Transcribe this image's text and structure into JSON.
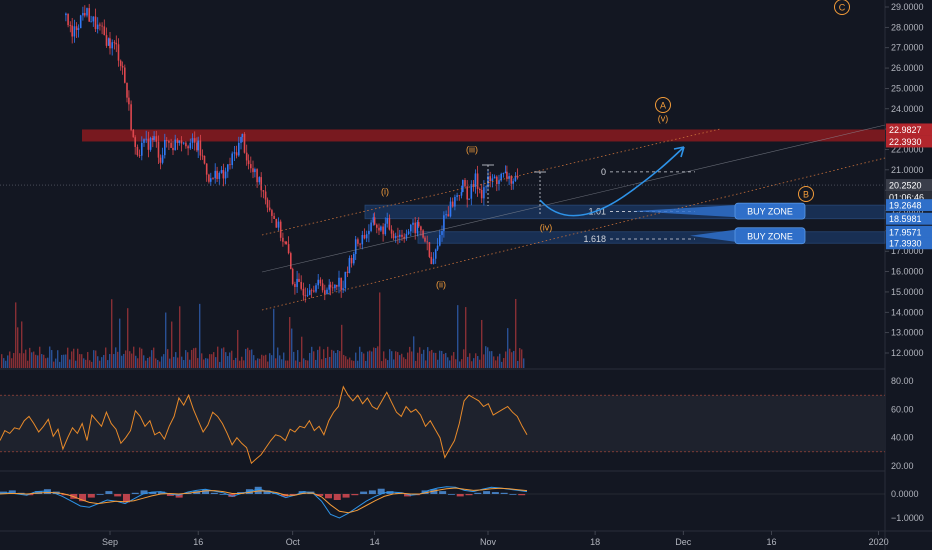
{
  "colors": {
    "background": "#131722",
    "bull": "#3179f5",
    "bear": "#e0484f",
    "resistance_zone": "#8b1a1f",
    "support_zone": "#1f4d8f",
    "wave_label": "#f39c3a",
    "projection": "#2e93e8",
    "rsi": "#e88a2a",
    "macd_line": "#2e93e8",
    "signal_line": "#f39c3a"
  },
  "chart_data": [
    {
      "type": "candlestick",
      "title": "",
      "y_axis_side": "right",
      "ylim": [
        11.5,
        29.4
      ],
      "y_ticks": [
        "29.0000",
        "28.0000",
        "27.0000",
        "26.0000",
        "25.0000",
        "24.0000",
        "23.0000",
        "22.0000",
        "21.0000",
        "20.0000",
        "19.0000",
        "18.0000",
        "17.0000",
        "16.0000",
        "15.0000",
        "14.0000",
        "13.0000",
        "12.0000"
      ],
      "x_ticks": [
        "Sep",
        "16",
        "Oct",
        "14",
        "Nov",
        "18",
        "Dec",
        "16",
        "2020"
      ],
      "close_path": [
        {
          "date": "Aug 26",
          "close": 28.6
        },
        {
          "date": "Aug 27",
          "close": 27.5
        },
        {
          "date": "Aug 28",
          "close": 28.3
        },
        {
          "date": "Aug 29",
          "close": 28.8
        },
        {
          "date": "Aug 30",
          "close": 28.4
        },
        {
          "date": "Sep 2",
          "close": 27.2
        },
        {
          "date": "Sep 3",
          "close": 27.0
        },
        {
          "date": "Sep 4",
          "close": 26.0
        },
        {
          "date": "Sep 5",
          "close": 24.0
        },
        {
          "date": "Sep 6",
          "close": 21.9
        },
        {
          "date": "Sep 9",
          "close": 22.5
        },
        {
          "date": "Sep 10",
          "close": 21.6
        },
        {
          "date": "Sep 11",
          "close": 22.4
        },
        {
          "date": "Sep 12",
          "close": 22.2
        },
        {
          "date": "Sep 13",
          "close": 22.6
        },
        {
          "date": "Sep 16",
          "close": 22.1
        },
        {
          "date": "Sep 17",
          "close": 21.3
        },
        {
          "date": "Sep 18",
          "close": 20.4
        },
        {
          "date": "Sep 19",
          "close": 20.9
        },
        {
          "date": "Sep 20",
          "close": 20.6
        },
        {
          "date": "Sep 23",
          "close": 22.6
        },
        {
          "date": "Sep 24",
          "close": 21.2
        },
        {
          "date": "Sep 25",
          "close": 20.7
        },
        {
          "date": "Sep 26",
          "close": 20.3
        },
        {
          "date": "Sep 27",
          "close": 19.4
        },
        {
          "date": "Sep 30",
          "close": 17.2
        },
        {
          "date": "Oct 1",
          "close": 15.6
        },
        {
          "date": "Oct 2",
          "close": 15.2
        },
        {
          "date": "Oct 3",
          "close": 15.1
        },
        {
          "date": "Oct 4",
          "close": 15.4
        },
        {
          "date": "Oct 7",
          "close": 15.1
        },
        {
          "date": "Oct 8",
          "close": 15.6
        },
        {
          "date": "Oct 9",
          "close": 15.3
        },
        {
          "date": "Oct 10",
          "close": 16.4
        },
        {
          "date": "Oct 11",
          "close": 17.3
        },
        {
          "date": "Oct 14",
          "close": 18.4
        },
        {
          "date": "Oct 15",
          "close": 18.0
        },
        {
          "date": "Oct 16",
          "close": 18.3
        },
        {
          "date": "Oct 17",
          "close": 17.9
        },
        {
          "date": "Oct 18",
          "close": 17.8
        },
        {
          "date": "Oct 21",
          "close": 18.2
        },
        {
          "date": "Oct 22",
          "close": 17.6
        },
        {
          "date": "Oct 23",
          "close": 16.3
        },
        {
          "date": "Oct 24",
          "close": 17.2
        },
        {
          "date": "Oct 25",
          "close": 18.7
        },
        {
          "date": "Oct 28",
          "close": 20.2
        },
        {
          "date": "Oct 29",
          "close": 19.7
        },
        {
          "date": "Oct 30",
          "close": 20.5
        },
        {
          "date": "Oct 31",
          "close": 19.9
        },
        {
          "date": "Nov 1",
          "close": 20.4
        },
        {
          "date": "Nov 4",
          "close": 20.7
        },
        {
          "date": "Nov 5",
          "close": 20.4
        },
        {
          "date": "Nov 6",
          "close": 20.3
        }
      ],
      "price_labels": [
        {
          "text": "22.9827",
          "value": 22.9827,
          "kind": "resistance"
        },
        {
          "text": "22.3930",
          "value": 22.393,
          "kind": "resistance"
        },
        {
          "text": "20.2520",
          "value": 20.252,
          "kind": "last"
        },
        {
          "text": "01:06:46",
          "value": 19.8,
          "kind": "timer"
        },
        {
          "text": "19.2648",
          "value": 19.2648,
          "kind": "support"
        },
        {
          "text": "18.5981",
          "value": 18.5981,
          "kind": "support"
        },
        {
          "text": "17.9571",
          "value": 17.9571,
          "kind": "support"
        },
        {
          "text": "17.3930",
          "value": 17.393,
          "kind": "support"
        }
      ],
      "zones": [
        {
          "kind": "resistance",
          "from": 22.393,
          "to": 22.9827
        },
        {
          "kind": "buy",
          "label": "BUY ZONE",
          "from": 18.5981,
          "to": 19.2648
        },
        {
          "kind": "buy",
          "label": "BUY ZONE",
          "from": 17.393,
          "to": 17.9571
        }
      ],
      "wave_labels": [
        "C",
        "A",
        "(v)",
        "B",
        "(iii)",
        "(i)",
        "(iv)",
        "(ii)"
      ],
      "fib_levels": [
        {
          "label": "0",
          "value": 20.9
        },
        {
          "label": "1.01",
          "value": 18.95
        },
        {
          "label": "1.618",
          "value": 17.6
        }
      ]
    },
    {
      "type": "line",
      "name": "RSI",
      "ylim": [
        13,
        88
      ],
      "y_ticks": [
        "80.00",
        "60.00",
        "40.00",
        "20.00"
      ],
      "band": [
        30,
        70
      ],
      "values": [
        38,
        45,
        43,
        47,
        46,
        52,
        55,
        50,
        44,
        48,
        53,
        41,
        46,
        32,
        40,
        47,
        43,
        50,
        38,
        56,
        52,
        48,
        58,
        50,
        46,
        36,
        40,
        45,
        59,
        55,
        48,
        52,
        42,
        44,
        39,
        48,
        55,
        68,
        63,
        70,
        60,
        52,
        44,
        49,
        58,
        55,
        50,
        43,
        35,
        40,
        36,
        33,
        22,
        25,
        28,
        33,
        38,
        42,
        41,
        38,
        46,
        44,
        48,
        47,
        52,
        45,
        48,
        42,
        52,
        58,
        62,
        76,
        70,
        66,
        70,
        64,
        68,
        62,
        60,
        66,
        72,
        65,
        58,
        55,
        62,
        58,
        60,
        56,
        48,
        52,
        46,
        40,
        26,
        32,
        38,
        50,
        66,
        70,
        68,
        66,
        62,
        64,
        56,
        58,
        60,
        62,
        58,
        55,
        48,
        42
      ]
    },
    {
      "type": "bar+line",
      "name": "MACD",
      "ylim": [
        -1.35,
        0.72
      ],
      "y_ticks": [
        "0.0000",
        "−1.0000"
      ],
      "histogram": [
        0.1,
        0.15,
        0.05,
        -0.05,
        0.12,
        0.2,
        0.1,
        -0.05,
        -0.2,
        -0.3,
        -0.15,
        0.0,
        0.12,
        -0.1,
        -0.35,
        0.05,
        0.15,
        0.08,
        0.1,
        -0.08,
        -0.15,
        0.05,
        0.12,
        0.18,
        0.05,
        0.0,
        -0.12,
        0.08,
        0.2,
        0.3,
        0.15,
        0.05,
        -0.1,
        -0.05,
        0.12,
        0.1,
        -0.08,
        -0.18,
        -0.25,
        -0.15,
        -0.05,
        0.1,
        0.15,
        0.22,
        0.12,
        0.05,
        -0.1,
        -0.05,
        0.15,
        0.2,
        0.12,
        0.0,
        -0.1,
        -0.05,
        0.05,
        0.12,
        0.08,
        0.05,
        0.0,
        -0.05
      ],
      "macd": [
        0.02,
        0.05,
        0.0,
        -0.05,
        0.1,
        0.12,
        0.05,
        -0.1,
        -0.3,
        -0.5,
        -0.55,
        -0.4,
        -0.25,
        -0.3,
        -0.4,
        -0.2,
        0.0,
        0.08,
        0.1,
        0.0,
        -0.05,
        0.08,
        0.15,
        0.2,
        0.12,
        0.05,
        -0.1,
        0.02,
        0.12,
        0.2,
        0.1,
        0.0,
        -0.15,
        -0.05,
        0.1,
        0.05,
        -0.3,
        -0.85,
        -1.0,
        -0.8,
        -0.55,
        -0.3,
        -0.1,
        0.05,
        0.08,
        0.05,
        -0.05,
        0.0,
        0.15,
        0.25,
        0.3,
        0.28,
        0.15,
        0.1,
        0.2,
        0.28,
        0.25,
        0.2,
        0.15,
        0.1
      ],
      "signal": [
        0.0,
        0.02,
        0.02,
        0.0,
        0.03,
        0.06,
        0.06,
        0.02,
        -0.08,
        -0.22,
        -0.35,
        -0.4,
        -0.35,
        -0.3,
        -0.32,
        -0.28,
        -0.18,
        -0.08,
        0.0,
        0.02,
        0.0,
        0.03,
        0.08,
        0.13,
        0.14,
        0.1,
        0.02,
        0.02,
        0.07,
        0.13,
        0.12,
        0.06,
        -0.05,
        -0.05,
        0.03,
        0.04,
        -0.12,
        -0.45,
        -0.72,
        -0.78,
        -0.68,
        -0.48,
        -0.28,
        -0.1,
        0.0,
        0.03,
        0.0,
        0.0,
        0.08,
        0.16,
        0.22,
        0.25,
        0.2,
        0.15,
        0.17,
        0.22,
        0.24,
        0.22,
        0.18,
        0.14
      ]
    }
  ]
}
